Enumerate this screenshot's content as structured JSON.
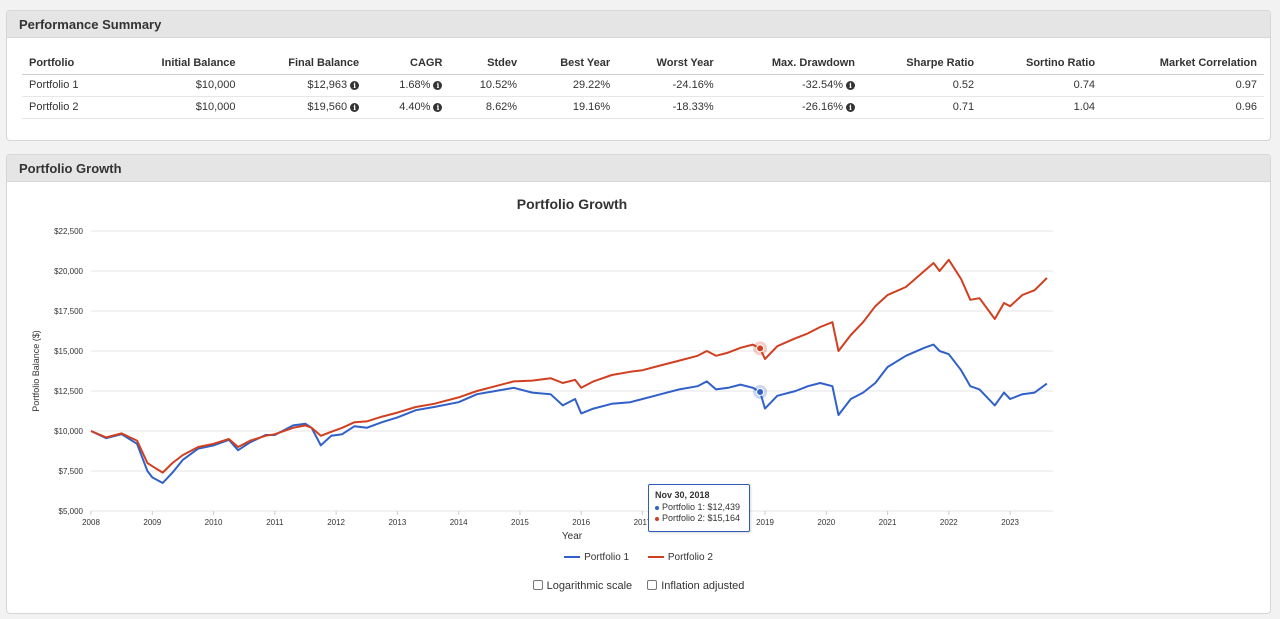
{
  "performance_summary": {
    "title": "Performance Summary",
    "columns": [
      "Portfolio",
      "Initial Balance",
      "Final Balance",
      "CAGR",
      "Stdev",
      "Best Year",
      "Worst Year",
      "Max. Drawdown",
      "Sharpe Ratio",
      "Sortino Ratio",
      "Market Correlation"
    ],
    "rows": [
      {
        "portfolio": "Portfolio 1",
        "initial": "$10,000",
        "final": "$12,963",
        "cagr": "1.68%",
        "stdev": "10.52%",
        "best": "29.22%",
        "worst": "-24.16%",
        "drawdown": "-32.54%",
        "sharpe": "0.52",
        "sortino": "0.74",
        "correlation": "0.97"
      },
      {
        "portfolio": "Portfolio 2",
        "initial": "$10,000",
        "final": "$19,560",
        "cagr": "4.40%",
        "stdev": "8.62%",
        "best": "19.16%",
        "worst": "-18.33%",
        "drawdown": "-26.16%",
        "sharpe": "0.71",
        "sortino": "1.04",
        "correlation": "0.96"
      }
    ],
    "info_icon": "info-circle-icon"
  },
  "portfolio_growth": {
    "panel_title": "Portfolio Growth",
    "options": {
      "log_label": "Logarithmic scale",
      "inflation_label": "Inflation adjusted",
      "log_checked": false,
      "inflation_checked": false
    },
    "tooltip": {
      "date": "Nov 30, 2018",
      "line1": "Portfolio 1: $12,439",
      "line2": "Portfolio 2: $15,164"
    }
  },
  "chart_data": {
    "type": "line",
    "title": "Portfolio Growth",
    "xlabel": "Year",
    "ylabel": "Portfolio Balance ($)",
    "xlim": [
      2008,
      2023.7
    ],
    "ylim": [
      5000,
      22500
    ],
    "x_ticks": [
      "2008",
      "2009",
      "2010",
      "2011",
      "2012",
      "2013",
      "2014",
      "2015",
      "2016",
      "2017",
      "2018",
      "2019",
      "2020",
      "2021",
      "2022",
      "2023"
    ],
    "y_ticks": [
      "$5,000",
      "$7,500",
      "$10,000",
      "$12,500",
      "$15,000",
      "$17,500",
      "$20,000",
      "$22,500"
    ],
    "y_tick_values": [
      5000,
      7500,
      10000,
      12500,
      15000,
      17500,
      20000,
      22500
    ],
    "grid": true,
    "legend_position": "bottom",
    "series": [
      {
        "name": "Portfolio 1",
        "color": "#3060c8",
        "points": [
          [
            2008.0,
            10000
          ],
          [
            2008.25,
            9550
          ],
          [
            2008.5,
            9800
          ],
          [
            2008.75,
            9200
          ],
          [
            2008.92,
            7500
          ],
          [
            2009.0,
            7100
          ],
          [
            2009.17,
            6750
          ],
          [
            2009.33,
            7400
          ],
          [
            2009.5,
            8200
          ],
          [
            2009.75,
            8900
          ],
          [
            2010.0,
            9100
          ],
          [
            2010.25,
            9450
          ],
          [
            2010.4,
            8800
          ],
          [
            2010.6,
            9300
          ],
          [
            2010.85,
            9750
          ],
          [
            2011.0,
            9750
          ],
          [
            2011.3,
            10350
          ],
          [
            2011.5,
            10450
          ],
          [
            2011.6,
            10200
          ],
          [
            2011.75,
            9100
          ],
          [
            2011.92,
            9700
          ],
          [
            2012.1,
            9800
          ],
          [
            2012.3,
            10300
          ],
          [
            2012.5,
            10200
          ],
          [
            2012.75,
            10550
          ],
          [
            2013.0,
            10850
          ],
          [
            2013.3,
            11300
          ],
          [
            2013.6,
            11500
          ],
          [
            2014.0,
            11800
          ],
          [
            2014.3,
            12300
          ],
          [
            2014.6,
            12500
          ],
          [
            2014.9,
            12700
          ],
          [
            2015.2,
            12400
          ],
          [
            2015.5,
            12300
          ],
          [
            2015.7,
            11600
          ],
          [
            2015.9,
            12000
          ],
          [
            2016.0,
            11100
          ],
          [
            2016.2,
            11400
          ],
          [
            2016.5,
            11700
          ],
          [
            2016.8,
            11800
          ],
          [
            2017.0,
            12000
          ],
          [
            2017.3,
            12300
          ],
          [
            2017.6,
            12600
          ],
          [
            2017.9,
            12800
          ],
          [
            2018.05,
            13100
          ],
          [
            2018.2,
            12600
          ],
          [
            2018.4,
            12700
          ],
          [
            2018.6,
            12900
          ],
          [
            2018.8,
            12700
          ],
          [
            2018.92,
            12439
          ],
          [
            2019.0,
            11400
          ],
          [
            2019.2,
            12200
          ],
          [
            2019.5,
            12500
          ],
          [
            2019.7,
            12800
          ],
          [
            2019.9,
            13000
          ],
          [
            2020.1,
            12800
          ],
          [
            2020.2,
            11000
          ],
          [
            2020.4,
            12000
          ],
          [
            2020.6,
            12400
          ],
          [
            2020.8,
            13000
          ],
          [
            2021.0,
            14000
          ],
          [
            2021.3,
            14700
          ],
          [
            2021.6,
            15200
          ],
          [
            2021.75,
            15400
          ],
          [
            2021.85,
            15000
          ],
          [
            2022.0,
            14800
          ],
          [
            2022.2,
            13800
          ],
          [
            2022.35,
            12800
          ],
          [
            2022.5,
            12600
          ],
          [
            2022.75,
            11600
          ],
          [
            2022.9,
            12400
          ],
          [
            2023.0,
            12000
          ],
          [
            2023.2,
            12300
          ],
          [
            2023.4,
            12400
          ],
          [
            2023.6,
            12963
          ]
        ]
      },
      {
        "name": "Portfolio 2",
        "color": "#d04020",
        "points": [
          [
            2008.0,
            10000
          ],
          [
            2008.25,
            9600
          ],
          [
            2008.5,
            9850
          ],
          [
            2008.75,
            9400
          ],
          [
            2008.92,
            8000
          ],
          [
            2009.0,
            7800
          ],
          [
            2009.17,
            7400
          ],
          [
            2009.33,
            8000
          ],
          [
            2009.5,
            8500
          ],
          [
            2009.75,
            9000
          ],
          [
            2010.0,
            9200
          ],
          [
            2010.25,
            9500
          ],
          [
            2010.4,
            9000
          ],
          [
            2010.6,
            9400
          ],
          [
            2010.85,
            9700
          ],
          [
            2011.0,
            9800
          ],
          [
            2011.3,
            10200
          ],
          [
            2011.5,
            10350
          ],
          [
            2011.6,
            10200
          ],
          [
            2011.75,
            9700
          ],
          [
            2011.92,
            9950
          ],
          [
            2012.1,
            10200
          ],
          [
            2012.3,
            10550
          ],
          [
            2012.5,
            10600
          ],
          [
            2012.75,
            10900
          ],
          [
            2013.0,
            11150
          ],
          [
            2013.3,
            11500
          ],
          [
            2013.6,
            11700
          ],
          [
            2014.0,
            12100
          ],
          [
            2014.3,
            12500
          ],
          [
            2014.6,
            12800
          ],
          [
            2014.9,
            13100
          ],
          [
            2015.2,
            13150
          ],
          [
            2015.5,
            13300
          ],
          [
            2015.7,
            13000
          ],
          [
            2015.9,
            13200
          ],
          [
            2016.0,
            12700
          ],
          [
            2016.2,
            13100
          ],
          [
            2016.5,
            13500
          ],
          [
            2016.8,
            13700
          ],
          [
            2017.0,
            13800
          ],
          [
            2017.3,
            14100
          ],
          [
            2017.6,
            14400
          ],
          [
            2017.9,
            14700
          ],
          [
            2018.05,
            15000
          ],
          [
            2018.2,
            14700
          ],
          [
            2018.4,
            14900
          ],
          [
            2018.6,
            15200
          ],
          [
            2018.8,
            15400
          ],
          [
            2018.92,
            15164
          ],
          [
            2019.0,
            14500
          ],
          [
            2019.2,
            15300
          ],
          [
            2019.5,
            15800
          ],
          [
            2019.7,
            16100
          ],
          [
            2019.9,
            16500
          ],
          [
            2020.1,
            16800
          ],
          [
            2020.2,
            15000
          ],
          [
            2020.4,
            16000
          ],
          [
            2020.6,
            16800
          ],
          [
            2020.8,
            17800
          ],
          [
            2021.0,
            18500
          ],
          [
            2021.3,
            19000
          ],
          [
            2021.6,
            20000
          ],
          [
            2021.75,
            20500
          ],
          [
            2021.85,
            20000
          ],
          [
            2022.0,
            20700
          ],
          [
            2022.2,
            19500
          ],
          [
            2022.35,
            18200
          ],
          [
            2022.5,
            18300
          ],
          [
            2022.75,
            17000
          ],
          [
            2022.9,
            18000
          ],
          [
            2023.0,
            17800
          ],
          [
            2023.2,
            18500
          ],
          [
            2023.4,
            18800
          ],
          [
            2023.6,
            19560
          ]
        ]
      }
    ]
  }
}
